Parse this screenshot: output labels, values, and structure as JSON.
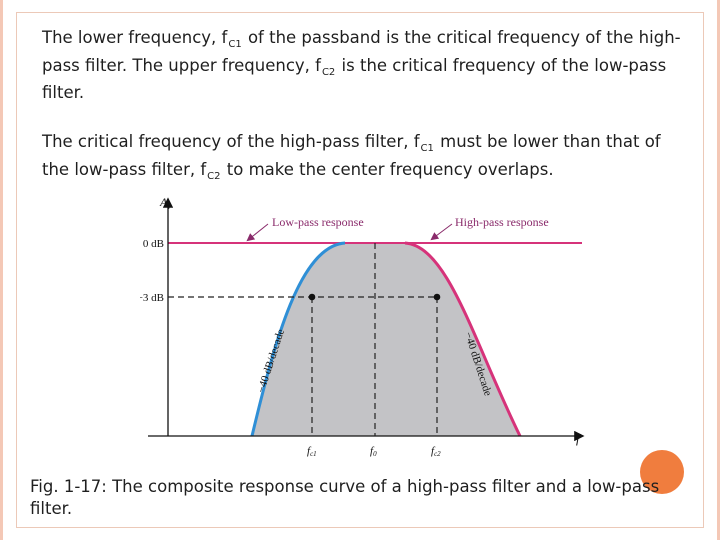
{
  "slide": {
    "p1": {
      "a": "The lower frequency, f",
      "s1": "C1",
      "b": " of the passband is the critical frequency of the high-pass filter. The upper frequency, f",
      "s2": "C2",
      "c": " is the critical frequency of the low-pass filter."
    },
    "p2": {
      "a": "The critical frequency of the high-pass filter, f",
      "s1": "C1",
      "b": " must be lower than that of the low-pass filter, f",
      "s2": "C2",
      "c": " to make the center frequency overlaps."
    },
    "caption": "Fig. 1-17: The composite response curve of a high-pass filter and a low-pass filter."
  },
  "figure": {
    "y_axis_label": "A",
    "y_axis_sub": "v",
    "x_axis_label": "f",
    "ticks_y": [
      "0 dB",
      "−3 dB"
    ],
    "ticks_x": {
      "fc1": {
        "main": "f",
        "sub": "c1"
      },
      "f0": {
        "main": "f",
        "sub": "0"
      },
      "fc2": {
        "main": "f",
        "sub": "c2"
      }
    },
    "legend_low": "Low-pass response",
    "legend_high": "High-pass response",
    "slope_left": "−40 dB/decade",
    "slope_right": "−40 dB/decade",
    "colors": {
      "response_line": "#d6337a",
      "slope_line": "#2f8fd6",
      "arrow": "#8a2b6b",
      "fill": "#c3c3c6"
    }
  }
}
